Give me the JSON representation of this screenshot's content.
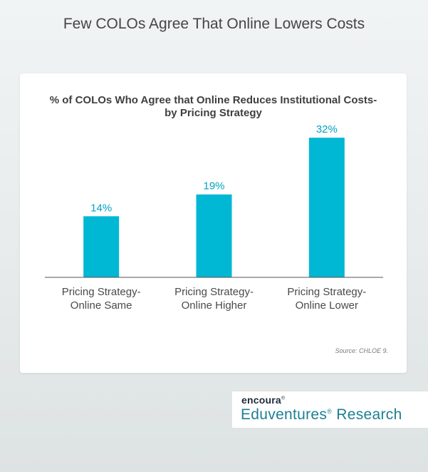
{
  "page": {
    "title": "Few COLOs Agree That Online Lowers Costs"
  },
  "chart_data": {
    "type": "bar",
    "title_lines": [
      "% of COLOs Who Agree that Online Reduces Institutional Costs-",
      "by Pricing Strategy"
    ],
    "categories": [
      [
        "Pricing Strategy-",
        "Online Same"
      ],
      [
        "Pricing Strategy-",
        "Online Higher"
      ],
      [
        "Pricing Strategy-",
        "Online Lower"
      ]
    ],
    "values": [
      14,
      19,
      32
    ],
    "data_labels": [
      "14%",
      "19%",
      "32%"
    ],
    "ylim": [
      0,
      35
    ],
    "grid": false,
    "legend": "none",
    "bar_color": "#00b7d4",
    "label_color": "#00a3c4",
    "axis_color": "#555555",
    "source": "Source: CHLOE 9."
  },
  "brand": {
    "company": "encoura",
    "company_mark": "®",
    "product": "Eduventures",
    "product_mark": "®",
    "product_suffix": " Research"
  }
}
